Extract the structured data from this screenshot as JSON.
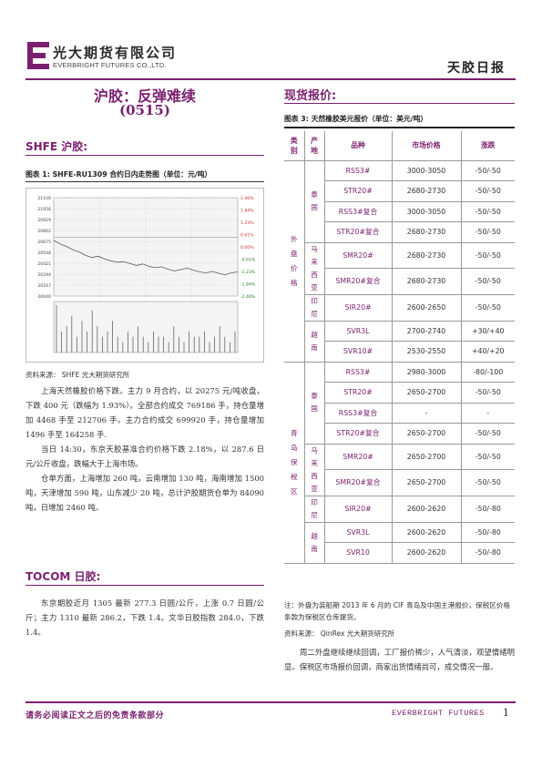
{
  "header": {
    "company_cn": "光大期货有限公司",
    "company_en": "EVERBRIGHT FUTURES CO.,LTD.",
    "report_type": "天胶日报"
  },
  "title": {
    "main": "沪胶：反弹难续",
    "date": "(0515)"
  },
  "shfe": {
    "heading": "SHFE 沪胶:",
    "figure_caption": "图表 1:  SHFE-RU1309 合约日内走势图（单位：元/吨）",
    "source": "资料来源：  SHFE    光大期货研究所",
    "paragraphs": [
      "上海天然橡胶价格下跌。主力 9 月合约，以 20275 元/吨收盘，下跌 400 元（跌幅为 1.93%）。全部合约成交 769186 手，持仓量增加 4468 手至 212706 手。主力合约成交 699920 手，持仓量增加 1496 手至 164258 手.",
      "当日 14:30，东京天胶基准合约价格下跌 2.18%，以 287.6 日元/公斤收盘，跌幅大于上海市场。",
      "仓单方面，上海增加 260 吨，云南增加 130 吨，海南增加 1500 吨，天津增加 590 吨，山东减少 20 吨，总计沪胶期货仓单为 84090 吨，日增加 2460 吨。"
    ]
  },
  "tocom": {
    "heading": "TOCOM 日胶:",
    "paragraph": "东京期胶近月 1305 最新 277.3 日圆/公斤，上涨 0.7 日圆/公斤；主力 1310 最新 286.2，下跌 1.4。文华日胶指数 284.0，下跌 1.4。"
  },
  "spot": {
    "heading": "现货报价:",
    "table_caption": "图表 3:  天然橡胶美元报价（单位：美元/吨）",
    "columns": [
      "类别",
      "产地",
      "品种",
      "市场价格",
      "涨跌"
    ],
    "groups": [
      {
        "category": "外盘价格",
        "origins": [
          {
            "name": "泰国",
            "rows": [
              {
                "variety": "RSS3#",
                "price": "3000-3050",
                "change": "-50/-50"
              },
              {
                "variety": "STR20#",
                "price": "2680-2730",
                "change": "-50/-50"
              },
              {
                "variety": "RSS3#复合",
                "price": "3000-3050",
                "change": "-50/-50"
              },
              {
                "variety": "STR20#复合",
                "price": "2680-2730",
                "change": "-50/-50"
              }
            ]
          },
          {
            "name": "马来西亚",
            "rows": [
              {
                "variety": "SMR20#",
                "price": "2680-2730",
                "change": "-50/-50"
              },
              {
                "variety": "SMR20#复合",
                "price": "2680-2730",
                "change": "-50/-50"
              }
            ]
          },
          {
            "name": "印尼",
            "rows": [
              {
                "variety": "SIR20#",
                "price": "2600-2650",
                "change": "-50/-50"
              }
            ]
          },
          {
            "name": "越南",
            "rows": [
              {
                "variety": "SVR3L",
                "price": "2700-2740",
                "change": "+30/+40"
              },
              {
                "variety": "SVR10#",
                "price": "2530-2550",
                "change": "+40/+20"
              }
            ]
          }
        ]
      },
      {
        "category": "青岛保税区",
        "origins": [
          {
            "name": "泰国",
            "rows": [
              {
                "variety": "RSS3#",
                "price": "2980-3000",
                "change": "-80/-100"
              },
              {
                "variety": "STR20#",
                "price": "2650-2700",
                "change": "-50/-50"
              },
              {
                "variety": "RSS3#复合",
                "price": "-",
                "change": "-"
              },
              {
                "variety": "STR20#复合",
                "price": "2650-2700",
                "change": "-50/-50"
              }
            ]
          },
          {
            "name": "马来西亚",
            "rows": [
              {
                "variety": "SMR20#",
                "price": "2650-2700",
                "change": "-50/-50"
              },
              {
                "variety": "SMR20#复合",
                "price": "2650-2700",
                "change": "-50/-50"
              }
            ]
          },
          {
            "name": "印尼",
            "rows": [
              {
                "variety": "SIR20#",
                "price": "2600-2620",
                "change": "-50/-80"
              }
            ]
          },
          {
            "name": "越南",
            "rows": [
              {
                "variety": "SVR3L",
                "price": "2600-2620",
                "change": "-50/-80"
              },
              {
                "variety": "SVR10",
                "price": "2600-2620",
                "change": "-50/-80"
              }
            ]
          }
        ]
      }
    ],
    "note": "注：外盘为装船期 2013 年 6 月的 CIF 青岛及中国主港报价，保税区价格条款为保税区仓库提货。",
    "source": "资料来源：  QinRex    光大期货研究所",
    "paragraph": "周二外盘继续继续回调，工厂报价稀少，人气清淡，观望情绪明显。保税区市场报价回调，商家出货情绪尚可，成交情况一般。"
  },
  "footer": {
    "disclaimer": "请务必阅读正文之后的免责条款部分",
    "brand_en": "EVERBRIGHT FUTURES",
    "page": "1"
  },
  "chart_data": {
    "type": "line",
    "title": "",
    "y_left_ticks": [
      "21100",
      "21056",
      "20929",
      "20802",
      "20675",
      "20548",
      "20421",
      "20294",
      "20167",
      "20040"
    ],
    "y_right_ticks": [
      "2.46%",
      "1.84%",
      "1.23%",
      "0.61%",
      "0.00%",
      "-0.61%",
      "-1.23%",
      "-1.84%",
      "-2.46%"
    ],
    "ylim": [
      20040,
      21100
    ],
    "reference_price": 20675,
    "price_series": [
      20640,
      20600,
      20575,
      20540,
      20515,
      20480,
      20455,
      20470,
      20440,
      20420,
      20405,
      20410,
      20390,
      20370,
      20385,
      20360,
      20345,
      20355,
      20330,
      20310,
      20325,
      20340,
      20320,
      20300,
      20290,
      20305,
      20285,
      20270,
      20290,
      20300
    ],
    "volume_series": [
      9,
      4,
      5,
      7,
      3,
      6,
      4,
      8,
      5,
      3,
      4,
      6,
      3,
      2,
      4,
      3,
      5,
      3,
      2,
      4,
      3,
      3,
      2,
      5,
      3,
      2,
      4,
      3,
      3,
      4,
      2,
      3,
      5,
      3,
      2,
      4
    ]
  }
}
